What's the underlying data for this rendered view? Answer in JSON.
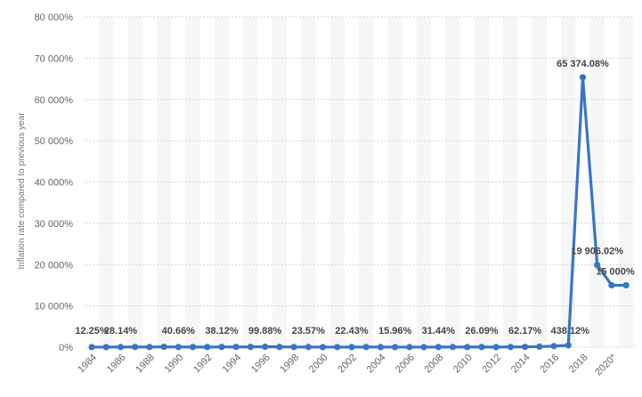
{
  "chart_data": {
    "type": "line",
    "ylabel": "Inflation rate compared to previous year",
    "ylim": [
      0,
      80000
    ],
    "yticks": [
      0,
      10000,
      20000,
      30000,
      40000,
      50000,
      60000,
      70000,
      80000
    ],
    "ytick_labels": [
      "0%",
      "10 000%",
      "20 000%",
      "30 000%",
      "40 000%",
      "50 000%",
      "60 000%",
      "70 000%",
      "80 000%"
    ],
    "x_tick_labels": [
      "1984",
      "1986",
      "1988",
      "1990",
      "1992",
      "1994",
      "1996",
      "1998",
      "2000",
      "2002",
      "2004",
      "2006",
      "2008",
      "2010",
      "2012",
      "2014",
      "2016",
      "2018",
      "2020*"
    ],
    "grid": true,
    "color": "#3a75c4",
    "series": [
      {
        "x": [
          1984,
          1985,
          1986,
          1987,
          1988,
          1989,
          1990,
          1991,
          1992,
          1993,
          1994,
          1995,
          1996,
          1997,
          1998,
          1999,
          2000,
          2001,
          2002,
          2003,
          2004,
          2005,
          2006,
          2007,
          2008,
          2009,
          2010,
          2011,
          2012,
          2013,
          2014,
          2015,
          2016,
          2017,
          2018,
          2019,
          2020,
          2021
        ],
        "values": [
          12.25,
          11.4,
          28.14,
          36.1,
          29.5,
          84.5,
          40.66,
          34.2,
          31.4,
          38.12,
          60.8,
          59.9,
          99.88,
          50.0,
          35.8,
          23.57,
          16.2,
          12.5,
          22.43,
          31.1,
          21.7,
          15.96,
          13.7,
          18.7,
          31.44,
          26.0,
          28.19,
          26.09,
          21.07,
          40.64,
          62.17,
          121.7,
          254.4,
          438.12,
          65374.08,
          19906.02,
          15000,
          15000
        ]
      }
    ],
    "data_labels": [
      {
        "x": 1984,
        "text": "12.25%"
      },
      {
        "x": 1986,
        "text": "28.14%"
      },
      {
        "x": 1990,
        "text": "40.66%"
      },
      {
        "x": 1993,
        "text": "38.12%"
      },
      {
        "x": 1996,
        "text": "99.88%"
      },
      {
        "x": 1999,
        "text": "23.57%"
      },
      {
        "x": 2002,
        "text": "22.43%"
      },
      {
        "x": 2005,
        "text": "15.96%"
      },
      {
        "x": 2008,
        "text": "31.44%"
      },
      {
        "x": 2011,
        "text": "26.09%"
      },
      {
        "x": 2014,
        "text": "62.17%"
      },
      {
        "x": 2017,
        "text": "438.12%"
      },
      {
        "x": 2018,
        "text": "65 374.08%"
      },
      {
        "x": 2019,
        "text": "19 906.02%"
      },
      {
        "x": 2020,
        "text": "15 000%"
      }
    ]
  }
}
